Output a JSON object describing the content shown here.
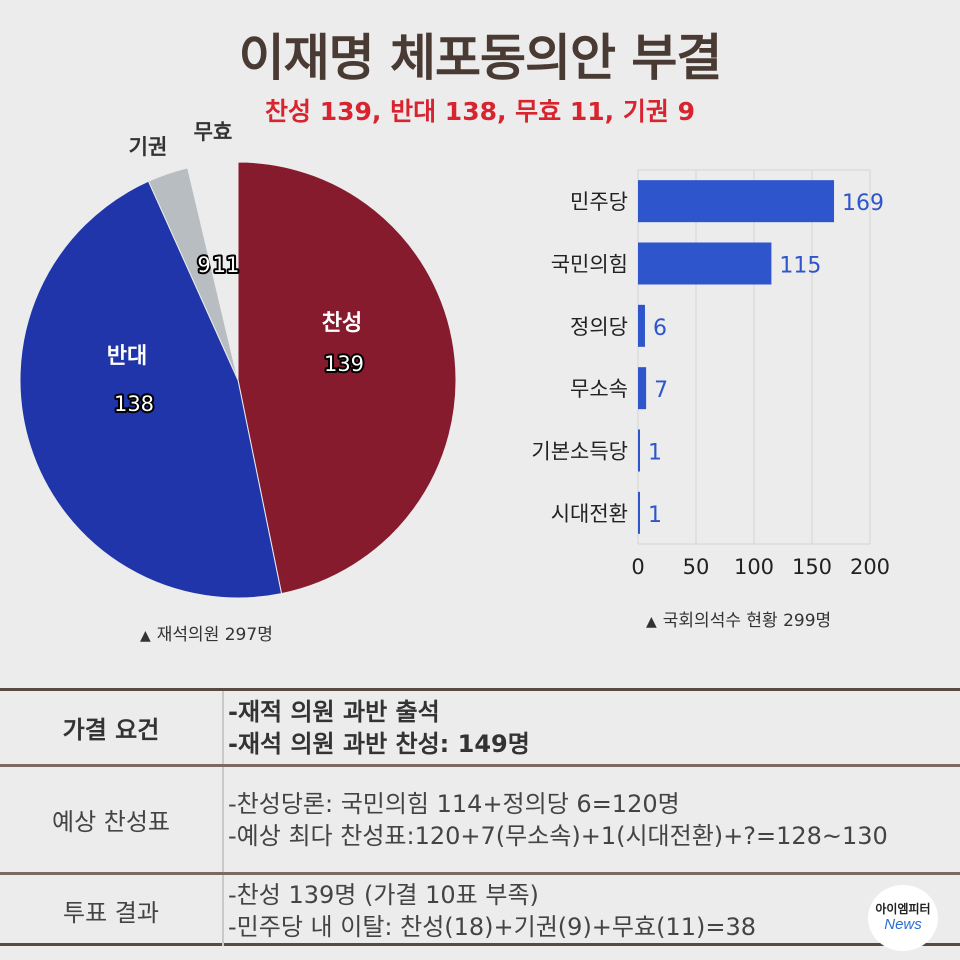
{
  "title": "이재명 체포동의안 부결",
  "subtitle": "찬성 139, 반대 138, 무효 11, 기권 9",
  "chart_data": [
    {
      "type": "pie",
      "categories": [
        "찬성",
        "반대",
        "기권",
        "무효"
      ],
      "values": [
        139,
        138,
        9,
        11
      ],
      "colors": [
        "#861b2e",
        "#1f35a9",
        "#b8bdc1",
        "#ececec"
      ],
      "title": "",
      "caption": "재석의원 297명"
    },
    {
      "type": "bar",
      "orientation": "horizontal",
      "categories": [
        "민주당",
        "국민의힘",
        "정의당",
        "무소속",
        "기본소득당",
        "시대전환"
      ],
      "values": [
        169,
        115,
        6,
        7,
        1,
        1
      ],
      "xlim": [
        0,
        200
      ],
      "xticks": [
        0,
        50,
        100,
        150,
        200
      ],
      "grid": true,
      "color": "#2e55cc",
      "title": "",
      "caption": "국회의석수 현황 299명"
    }
  ],
  "table": {
    "rows": [
      {
        "label": "가결 요건",
        "lines": [
          "-재적 의원 과반 출석",
          "-재석 의원 과반 찬성:  149명"
        ]
      },
      {
        "label": "예상 찬성표",
        "lines": [
          "-찬성당론: 국민의힘 114+정의당 6=120명",
          "-예상 최다 찬성표:120+7(무소속)+1(시대전환)+?=128~130"
        ]
      },
      {
        "label": "투표 결과",
        "lines": [
          "-찬성 139명 (가결 10표 부족)",
          "-민주당 내 이탈: 찬성(18)+기권(9)+무효(11)=38"
        ]
      }
    ]
  },
  "logo": {
    "top": "아이엠피터",
    "bottom": "News"
  }
}
